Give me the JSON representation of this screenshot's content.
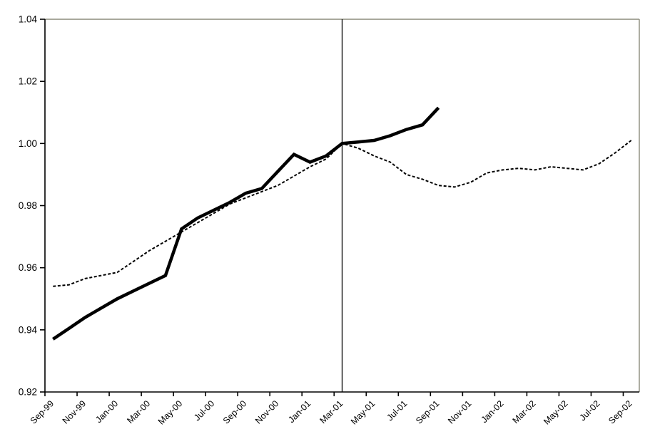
{
  "chart_data": {
    "type": "line",
    "title": "",
    "xlabel": "",
    "ylabel": "",
    "background_color": "#ffffff",
    "plot_border_color": "#8b8b7c",
    "axis_color": "#000000",
    "grid": false,
    "legend": false,
    "y_axis": {
      "min": 0.92,
      "max": 1.04,
      "tick_step": 0.02,
      "tick_labels": [
        "0.92",
        "0.94",
        "0.96",
        "0.98",
        "1.00",
        "1.02",
        "1.04"
      ]
    },
    "x_axis": {
      "n_slots": 37,
      "months_per_tick": 2,
      "tick_labels": [
        "Sep-99",
        "Nov-99",
        "Jan-00",
        "Mar-00",
        "May-00",
        "Jul-00",
        "Sep-00",
        "Nov-00",
        "Jan-01",
        "Mar-01",
        "May-01",
        "Jul-01",
        "Sep-01",
        "Nov-01",
        "Jan-02",
        "Mar-02",
        "May-02",
        "Jul-02",
        "Sep-02"
      ]
    },
    "x": [
      "Sep-99",
      "Oct-99",
      "Nov-99",
      "Dec-99",
      "Jan-00",
      "Feb-00",
      "Mar-00",
      "Apr-00",
      "May-00",
      "Jun-00",
      "Jul-00",
      "Aug-00",
      "Sep-00",
      "Oct-00",
      "Nov-00",
      "Dec-00",
      "Jan-01",
      "Feb-01",
      "Mar-01",
      "Apr-01",
      "May-01",
      "Jun-01",
      "Jul-01",
      "Aug-01",
      "Sep-01",
      "Oct-01",
      "Nov-01",
      "Dec-01",
      "Jan-02",
      "Feb-02",
      "Mar-02",
      "Apr-02",
      "May-02",
      "Jun-02",
      "Jul-02",
      "Aug-02",
      "Sep-02"
    ],
    "reference_line": {
      "at_month": "Mar-01",
      "month_index": 18,
      "orientation": "vertical",
      "color": "#000000"
    },
    "series": [
      {
        "name": "series-solid-thick",
        "line_style": "solid",
        "color": "#000000",
        "stroke_width": 4.5,
        "values": [
          0.937,
          0.9405,
          0.944,
          0.947,
          0.95,
          0.9525,
          0.955,
          0.9575,
          0.9725,
          0.976,
          0.9785,
          0.981,
          0.984,
          0.9855,
          0.991,
          0.9965,
          0.994,
          0.996,
          1.0,
          1.0005,
          1.001,
          1.0025,
          1.0045,
          1.006,
          1.0115
        ]
      },
      {
        "name": "series-dashed",
        "line_style": "dashed",
        "color": "#000000",
        "stroke_width": 2,
        "values": [
          0.954,
          0.9545,
          0.9565,
          0.9575,
          0.9585,
          0.962,
          0.9655,
          0.9685,
          0.9715,
          0.9745,
          0.9775,
          0.9805,
          0.9825,
          0.9845,
          0.9865,
          0.9895,
          0.9925,
          0.995,
          1.0,
          0.9985,
          0.996,
          0.994,
          0.99,
          0.9885,
          0.9865,
          0.986,
          0.9875,
          0.9905,
          0.9915,
          0.992,
          0.9915,
          0.9925,
          0.992,
          0.9915,
          0.9935,
          0.997,
          1.001
        ]
      }
    ]
  }
}
